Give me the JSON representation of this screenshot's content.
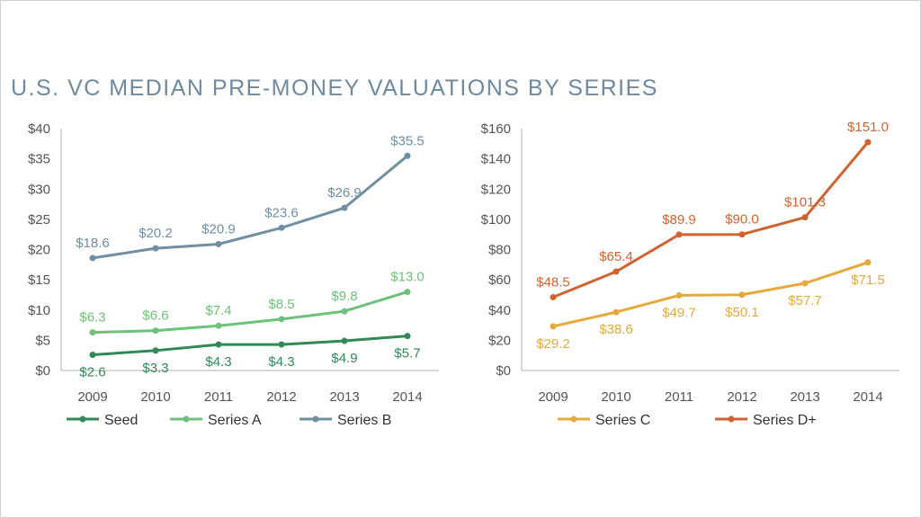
{
  "title": "U.S. VC MEDIAN PRE-MONEY VALUATIONS BY SERIES",
  "colors": {
    "title": "#6e8aa0",
    "axis": "#b0b0b0",
    "seed": "#2e8b57",
    "series_a": "#6cc27a",
    "series_b": "#6f8fa3",
    "series_c": "#e8a93b",
    "series_d": "#d2632f"
  },
  "chart_data": [
    {
      "type": "line",
      "title": "",
      "xlabel": "",
      "ylabel": "",
      "x": [
        "2009",
        "2010",
        "2011",
        "2012",
        "2013",
        "2014"
      ],
      "ylim": [
        0,
        40
      ],
      "yticks": [
        "$0",
        "$5",
        "$10",
        "$15",
        "$20",
        "$25",
        "$30",
        "$35",
        "$40"
      ],
      "legend_position": "bottom",
      "series": [
        {
          "name": "Seed",
          "color": "#2e8b57",
          "values": [
            2.6,
            3.3,
            4.3,
            4.3,
            4.9,
            5.7
          ],
          "labels": [
            "$2.6",
            "$3.3",
            "$4.3",
            "$4.3",
            "$4.9",
            "$5.7"
          ],
          "label_side": "below"
        },
        {
          "name": "Series A",
          "color": "#6cc27a",
          "values": [
            6.3,
            6.6,
            7.4,
            8.5,
            9.8,
            13.0
          ],
          "labels": [
            "$6.3",
            "$6.6",
            "$7.4",
            "$8.5",
            "$9.8",
            "$13.0"
          ],
          "label_side": "above"
        },
        {
          "name": "Series B",
          "color": "#6f8fa3",
          "values": [
            18.6,
            20.2,
            20.9,
            23.6,
            26.9,
            35.5
          ],
          "labels": [
            "$18.6",
            "$20.2",
            "$20.9",
            "$23.6",
            "$26.9",
            "$35.5"
          ],
          "label_side": "above"
        }
      ]
    },
    {
      "type": "line",
      "title": "",
      "xlabel": "",
      "ylabel": "",
      "x": [
        "2009",
        "2010",
        "2011",
        "2012",
        "2013",
        "2014"
      ],
      "ylim": [
        0,
        160
      ],
      "yticks": [
        "$0",
        "$20",
        "$40",
        "$60",
        "$80",
        "$100",
        "$120",
        "$140",
        "$160"
      ],
      "legend_position": "bottom",
      "series": [
        {
          "name": "Series C",
          "color": "#e8a93b",
          "values": [
            29.2,
            38.6,
            49.7,
            50.1,
            57.7,
            71.5
          ],
          "labels": [
            "$29.2",
            "$38.6",
            "$49.7",
            "$50.1",
            "$57.7",
            "$71.5"
          ],
          "label_side": "below"
        },
        {
          "name": "Series D+",
          "color": "#d2632f",
          "values": [
            48.5,
            65.4,
            89.9,
            90.0,
            101.3,
            151.0
          ],
          "labels": [
            "$48.5",
            "$65.4",
            "$89.9",
            "$90.0",
            "$101.3",
            "$151.0"
          ],
          "label_side": "above"
        }
      ]
    }
  ]
}
